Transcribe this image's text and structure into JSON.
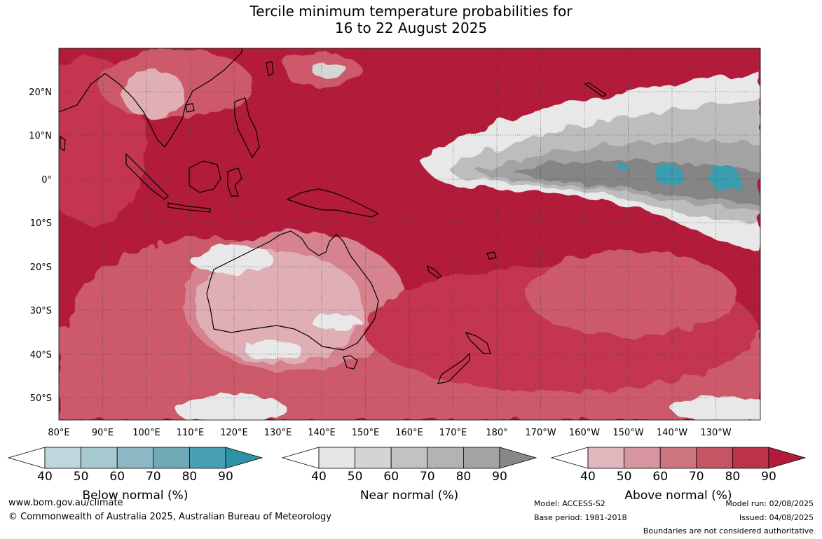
{
  "title": {
    "line1": "Tercile minimum temperature probabilities for",
    "line2": "16 to 22 August 2025"
  },
  "map": {
    "lon_labels": [
      "80°E",
      "90°E",
      "100°E",
      "110°E",
      "120°E",
      "130°E",
      "140°E",
      "150°E",
      "160°E",
      "170°E",
      "180°",
      "170°W",
      "160°W",
      "150°W",
      "140°W",
      "130°W"
    ],
    "lat_labels": [
      "20°N",
      "10°N",
      "0°",
      "10°S",
      "20°S",
      "30°S",
      "40°S",
      "50°S"
    ],
    "colors": {
      "above_90": "#b31b3a",
      "above_80": "#c43650",
      "above_70": "#cc5a6b",
      "above_60": "#d6838f",
      "above_50": "#e0aeb5",
      "near_50": "#e8e8e8",
      "near_60": "#d5d5d5",
      "near_70": "#bdbdbd",
      "near_80": "#a3a3a3",
      "near_90": "#858585",
      "below_80": "#3a9eb0",
      "land_outline": "#000000"
    }
  },
  "colorbars": [
    {
      "title": "Below normal (%)",
      "ticks": [
        "40",
        "50",
        "60",
        "70",
        "80",
        "90"
      ],
      "colors": [
        "#bfd6dc",
        "#a6c9cf",
        "#8bb8c3",
        "#6eaab6",
        "#4aa0b2",
        "#2e92a6"
      ]
    },
    {
      "title": "Near normal (%)",
      "ticks": [
        "40",
        "50",
        "60",
        "70",
        "80",
        "90"
      ],
      "colors": [
        "#e6e6e6",
        "#d4d4d4",
        "#c2c2c2",
        "#b3b3b3",
        "#a3a3a3",
        "#888888"
      ]
    },
    {
      "title": "Above normal (%)",
      "ticks": [
        "40",
        "50",
        "60",
        "70",
        "80",
        "90"
      ],
      "colors": [
        "#e2b6bd",
        "#d6959f",
        "#cc7480",
        "#c45563",
        "#bc3349",
        "#b31b3a"
      ]
    }
  ],
  "footer": {
    "website": "www.bom.gov.au/climate",
    "copyright": "© Commonwealth of Australia 2025, Australian Bureau of Meteorology",
    "model": "Model: ACCESS-S2",
    "base_period": "Base period: 1981-2018",
    "model_run": "Model run: 02/08/2025",
    "issued": "Issued: 04/08/2025",
    "disclaimer": "Boundaries are not considered authoritative"
  }
}
